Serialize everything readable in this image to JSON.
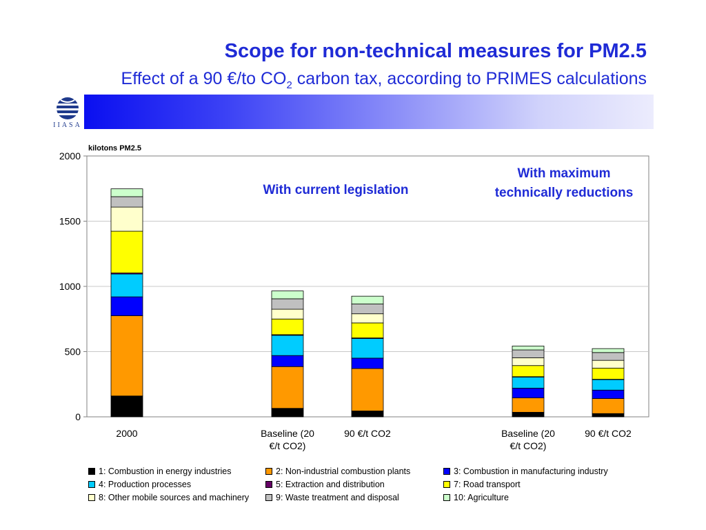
{
  "header": {
    "title": "Scope for non-technical measures for PM2.5",
    "subtitle_main": "Effect of a 90 €/to CO",
    "subtitle_sub": "2",
    "subtitle_rest": " carbon tax, according to PRIMES calculations",
    "logo_text": "IIASA"
  },
  "colors": {
    "title": "#1f2bd6",
    "annotation": "#1f2bd6"
  },
  "chart_data": {
    "type": "bar",
    "stacked": true,
    "ylabel": "kilotons PM2.5",
    "ylim": [
      0,
      2000
    ],
    "yticks": [
      0,
      500,
      1000,
      1500,
      2000
    ],
    "grid": true,
    "legend_position": "bottom",
    "categories": [
      "2000",
      "Baseline (20 €/t CO2)",
      "90 €/t CO2",
      "Baseline (20 €/t CO2)",
      "90 €/t CO2"
    ],
    "category_lines": [
      [
        "2000"
      ],
      [
        "Baseline (20",
        "€/t CO2)"
      ],
      [
        "90 €/t CO2"
      ],
      [
        "Baseline (20",
        "€/t CO2)"
      ],
      [
        "90 €/t CO2"
      ]
    ],
    "annotations": [
      {
        "lines": [
          "With current legislation"
        ]
      },
      {
        "lines": [
          "With maximum",
          "technically reductions"
        ]
      }
    ],
    "series": [
      {
        "name": "1: Combustion in energy industries",
        "color": "#000000",
        "values": [
          160,
          65,
          45,
          35,
          25
        ]
      },
      {
        "name": "2: Non-industrial combustion plants",
        "color": "#ff9900",
        "values": [
          615,
          320,
          325,
          110,
          115
        ]
      },
      {
        "name": "3: Combustion in manufacturing industry",
        "color": "#0000ff",
        "values": [
          145,
          85,
          80,
          75,
          65
        ]
      },
      {
        "name": "4: Production processes",
        "color": "#00ccff",
        "values": [
          175,
          155,
          150,
          85,
          80
        ]
      },
      {
        "name": "5: Extraction and distribution",
        "color": "#660066",
        "values": [
          8,
          5,
          5,
          3,
          3
        ]
      },
      {
        "name": "7: Road transport",
        "color": "#ffff00",
        "values": [
          320,
          120,
          115,
          85,
          85
        ]
      },
      {
        "name": "8: Other mobile sources and machinery",
        "color": "#ffffcc",
        "values": [
          185,
          75,
          70,
          60,
          60
        ]
      },
      {
        "name": "9: Waste treatment and disposal",
        "color": "#c0c0c0",
        "values": [
          80,
          80,
          75,
          60,
          60
        ]
      },
      {
        "name": "10: Agriculture",
        "color": "#ccffcc",
        "values": [
          60,
          60,
          60,
          30,
          30
        ]
      }
    ]
  }
}
